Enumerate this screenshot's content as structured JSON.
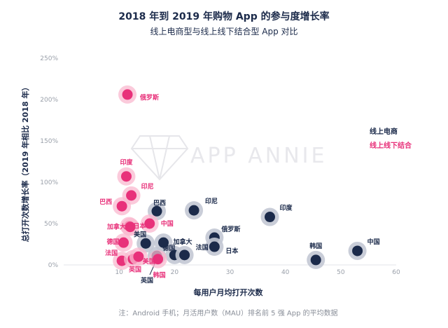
{
  "chart_data": {
    "type": "scatter",
    "title": "2018 年到 2019 年购物 App 的参与度增长率",
    "subtitle": "线上电商型与线上线下结合型 App 对比",
    "xlabel": "每用户月均打开次数",
    "ylabel": "总打开次数增长率（2019 年相比 2018 年）",
    "xlim": [
      0,
      60
    ],
    "ylim": [
      0,
      250
    ],
    "xticks": [
      "10",
      "20",
      "30",
      "40",
      "50",
      "60"
    ],
    "yticks": [
      "0%",
      "50%",
      "100%",
      "150%",
      "200%",
      "250%"
    ],
    "watermark": "APP ANNIE",
    "footnote": "注：Android 手机；月活用户数（MAU）排名前 5 强 App 的平均数据",
    "legend": [
      {
        "name": "线上电商",
        "color": "#1b2a4a"
      },
      {
        "name": "线上线下结合",
        "color": "#e8317a"
      }
    ],
    "series": [
      {
        "name": "线上电商",
        "color": "#1b2a4a",
        "points": [
          {
            "x": 16.8,
            "y": 65,
            "label": "巴西"
          },
          {
            "x": 23.5,
            "y": 66,
            "label": "印尼"
          },
          {
            "x": 37.2,
            "y": 58,
            "label": "印度"
          },
          {
            "x": 27.2,
            "y": 33,
            "label": "俄罗斯"
          },
          {
            "x": 27.2,
            "y": 22,
            "label": "日本"
          },
          {
            "x": 53.0,
            "y": 17,
            "label": "中国"
          },
          {
            "x": 45.5,
            "y": 6,
            "label": "韩国"
          },
          {
            "x": 18.0,
            "y": 27,
            "label": "加拿大"
          },
          {
            "x": 14.8,
            "y": 26,
            "label": "美国"
          },
          {
            "x": 20.0,
            "y": 12,
            "label": "德国"
          },
          {
            "x": 21.8,
            "y": 12,
            "label": "法国"
          },
          {
            "x": 16.8,
            "y": 11,
            "label": "英国"
          }
        ]
      },
      {
        "name": "线上线下结合",
        "color": "#e8317a",
        "points": [
          {
            "x": 11.5,
            "y": 206,
            "label": "俄罗斯"
          },
          {
            "x": 11.3,
            "y": 107,
            "label": "印度"
          },
          {
            "x": 12.2,
            "y": 84,
            "label": "印尼"
          },
          {
            "x": 10.5,
            "y": 71,
            "label": "巴西"
          },
          {
            "x": 11.8,
            "y": 47,
            "label": "日本"
          },
          {
            "x": 15.5,
            "y": 50,
            "label": "中国"
          },
          {
            "x": 12.0,
            "y": 46,
            "label": "加拿大"
          },
          {
            "x": 10.8,
            "y": 27,
            "label": "德国"
          },
          {
            "x": 10.5,
            "y": 5,
            "label": "法国"
          },
          {
            "x": 12.5,
            "y": 7,
            "label": "英国"
          },
          {
            "x": 13.5,
            "y": 10,
            "label": "美国"
          },
          {
            "x": 17.0,
            "y": 7,
            "label": "韩国"
          }
        ]
      }
    ]
  }
}
